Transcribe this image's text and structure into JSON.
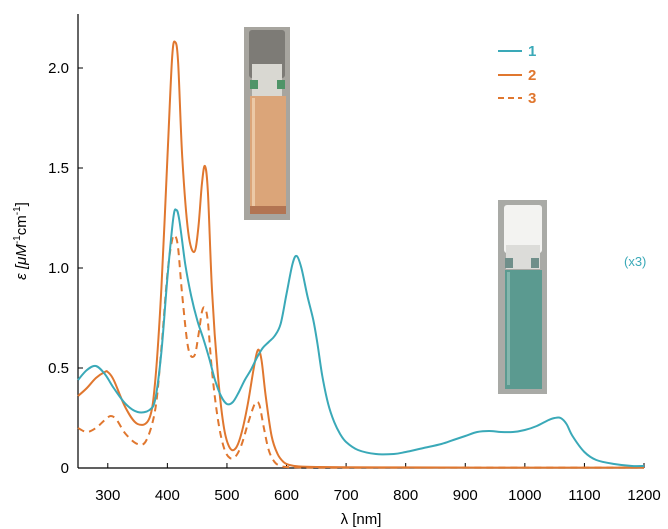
{
  "chart_data": {
    "type": "line",
    "xlabel": "λ [nm]",
    "ylabel_prefix": "ε [μM",
    "ylabel_sup1": "-1",
    "ylabel_mid": "cm",
    "ylabel_sup2": "-1",
    "ylabel_suffix": "]",
    "xlim": [
      250,
      1200
    ],
    "ylim": [
      0,
      2.2
    ],
    "xticks": [
      300,
      400,
      500,
      600,
      700,
      800,
      900,
      1000,
      1100,
      1200
    ],
    "xtick_labels": [
      "300",
      "400",
      "500",
      "600",
      "700",
      "800",
      "900",
      "1000",
      "1100",
      "1200"
    ],
    "yticks": [
      0,
      0.5,
      1.0,
      1.5,
      2.0
    ],
    "ytick_labels": [
      "0",
      "0.5",
      "1.0",
      "1.5",
      "2.0"
    ],
    "legend_position": "top-right",
    "annotation": "(x3)",
    "annotation_series": "1",
    "colors": {
      "series1": "#3aa9b8",
      "series2": "#e0772f",
      "series3": "#e0772f"
    },
    "series": [
      {
        "name": "1",
        "style": "solid",
        "x": [
          250,
          265,
          280,
          295,
          310,
          330,
          350,
          370,
          380,
          390,
          400,
          410,
          415,
          420,
          430,
          440,
          450,
          460,
          470,
          480,
          490,
          500,
          510,
          520,
          530,
          540,
          550,
          560,
          570,
          580,
          590,
          600,
          610,
          617,
          625,
          635,
          645,
          652,
          660,
          670,
          680,
          690,
          700,
          720,
          750,
          780,
          800,
          830,
          860,
          880,
          900,
          920,
          940,
          960,
          980,
          1000,
          1020,
          1040,
          1050,
          1060,
          1070,
          1080,
          1100,
          1120,
          1150,
          1180,
          1200
        ],
        "y": [
          0.44,
          0.49,
          0.51,
          0.47,
          0.4,
          0.32,
          0.28,
          0.29,
          0.35,
          0.58,
          0.95,
          1.25,
          1.29,
          1.24,
          1.02,
          0.86,
          0.74,
          0.65,
          0.55,
          0.44,
          0.36,
          0.32,
          0.33,
          0.38,
          0.44,
          0.49,
          0.55,
          0.6,
          0.63,
          0.66,
          0.72,
          0.87,
          1.02,
          1.06,
          1.0,
          0.86,
          0.74,
          0.62,
          0.46,
          0.32,
          0.23,
          0.17,
          0.13,
          0.09,
          0.07,
          0.07,
          0.08,
          0.1,
          0.12,
          0.14,
          0.16,
          0.18,
          0.185,
          0.18,
          0.18,
          0.19,
          0.21,
          0.24,
          0.25,
          0.25,
          0.22,
          0.16,
          0.08,
          0.04,
          0.02,
          0.01,
          0.01
        ]
      },
      {
        "name": "2",
        "style": "solid",
        "x": [
          250,
          265,
          280,
          295,
          300,
          310,
          330,
          350,
          370,
          380,
          390,
          400,
          408,
          413,
          418,
          425,
          435,
          445,
          452,
          458,
          463,
          468,
          475,
          485,
          495,
          505,
          515,
          525,
          535,
          545,
          552,
          558,
          565,
          575,
          585,
          595,
          605,
          620,
          650,
          700,
          800,
          1000,
          1200
        ],
        "y": [
          0.36,
          0.4,
          0.45,
          0.48,
          0.48,
          0.44,
          0.3,
          0.22,
          0.25,
          0.45,
          0.9,
          1.55,
          2.05,
          2.13,
          2.03,
          1.55,
          1.18,
          1.08,
          1.2,
          1.42,
          1.51,
          1.38,
          0.88,
          0.46,
          0.2,
          0.1,
          0.1,
          0.18,
          0.32,
          0.5,
          0.59,
          0.54,
          0.36,
          0.16,
          0.07,
          0.03,
          0.015,
          0.008,
          0.005,
          0.004,
          0.003,
          0.002,
          0.002
        ]
      },
      {
        "name": "3",
        "style": "dashed",
        "x": [
          250,
          265,
          280,
          295,
          305,
          315,
          330,
          350,
          365,
          380,
          390,
          400,
          408,
          413,
          418,
          425,
          435,
          445,
          452,
          458,
          463,
          468,
          475,
          485,
          495,
          505,
          515,
          525,
          535,
          545,
          550,
          555,
          562,
          570,
          580,
          590,
          600,
          620,
          650,
          700,
          800,
          1000,
          1200
        ],
        "y": [
          0.2,
          0.18,
          0.2,
          0.24,
          0.26,
          0.24,
          0.17,
          0.12,
          0.14,
          0.3,
          0.6,
          0.97,
          1.14,
          1.16,
          1.1,
          0.86,
          0.6,
          0.56,
          0.66,
          0.78,
          0.8,
          0.73,
          0.48,
          0.24,
          0.1,
          0.05,
          0.06,
          0.12,
          0.22,
          0.31,
          0.33,
          0.31,
          0.2,
          0.09,
          0.03,
          0.01,
          0.005,
          0.003,
          0.002,
          0.002,
          0.002,
          0.002,
          0.002
        ]
      }
    ]
  }
}
